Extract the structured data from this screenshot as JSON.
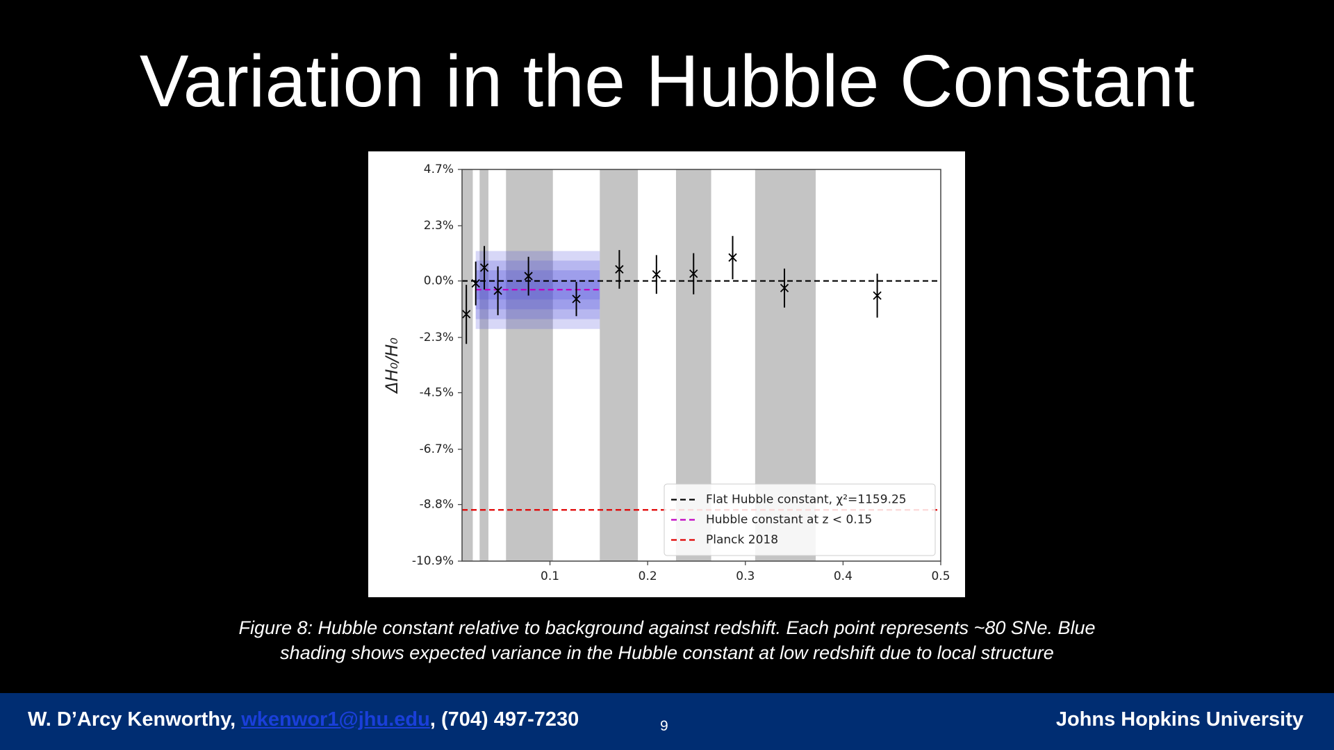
{
  "slide_title": "Variation in the Hubble Constant",
  "chart_data": {
    "type": "scatter",
    "ylabel": "ΔH₀/H₀",
    "x": [
      0.0144,
      0.024,
      0.0328,
      0.0467,
      0.078,
      0.127,
      0.171,
      0.209,
      0.247,
      0.287,
      0.34,
      0.435
    ],
    "values": [
      -1.36,
      -0.1,
      0.55,
      -0.4,
      0.2,
      -0.74,
      0.48,
      0.27,
      0.3,
      0.97,
      -0.29,
      -0.6
    ],
    "errors": [
      1.2,
      0.9,
      0.9,
      1.0,
      0.8,
      0.7,
      0.8,
      0.8,
      0.85,
      0.9,
      0.8,
      0.9
    ],
    "color": "#000000",
    "xlim": [
      0.01,
      0.5
    ],
    "xticks": [
      0.1,
      0.2,
      0.3,
      0.4,
      0.5
    ],
    "ylim": [
      -10.9,
      4.7
    ],
    "yscale": "log",
    "yticks": [
      {
        "value": 4.7,
        "label": "4.7%"
      },
      {
        "value": 2.3,
        "label": "2.3%"
      },
      {
        "value": 0.0,
        "label": "0.0%"
      },
      {
        "value": -2.3,
        "label": "-2.3%"
      },
      {
        "value": -4.5,
        "label": "-4.5%"
      },
      {
        "value": -6.7,
        "label": "-6.7%"
      },
      {
        "value": -8.8,
        "label": "-8.8%"
      },
      {
        "value": -10.9,
        "label": "-10.9%"
      }
    ],
    "shaded_regions": [
      [
        0.01,
        0.021
      ],
      [
        0.028,
        0.037
      ],
      [
        0.055,
        0.103
      ],
      [
        0.151,
        0.19
      ],
      [
        0.229,
        0.265
      ],
      [
        0.31,
        0.372
      ]
    ],
    "shade_color": "#c4c4c4",
    "variance_band": {
      "xrange": [
        0.024,
        0.151
      ],
      "center": -0.36,
      "half_widths": [
        1.6,
        1.2,
        0.8,
        0.4
      ],
      "color": "#4b4bdc"
    },
    "reference_lines": [
      {
        "name": "Flat Hubble constant, χ²=1159.25",
        "value": 0.0,
        "color": "#000000"
      },
      {
        "name": "Hubble constant at z < 0.15",
        "value": -0.36,
        "color": "#c000c0",
        "xrange": [
          0.024,
          0.151
        ]
      },
      {
        "name": "Planck 2018",
        "value": -9.0,
        "color": "#e00000"
      }
    ],
    "legend": "lower right"
  },
  "caption": [
    "Figure 8: Hubble constant relative to background against redshift. Each point represents ~80 SNe. Blue",
    "shading shows expected variance in the Hubble constant at low redshift due to local structure"
  ],
  "footer": {
    "author": "W. D’Arcy Kenworthy, ",
    "email": "wkenwor1@jhu.edu",
    "phone": ", (704) 497-7230",
    "page_number": 9,
    "institution": "Johns Hopkins University"
  }
}
